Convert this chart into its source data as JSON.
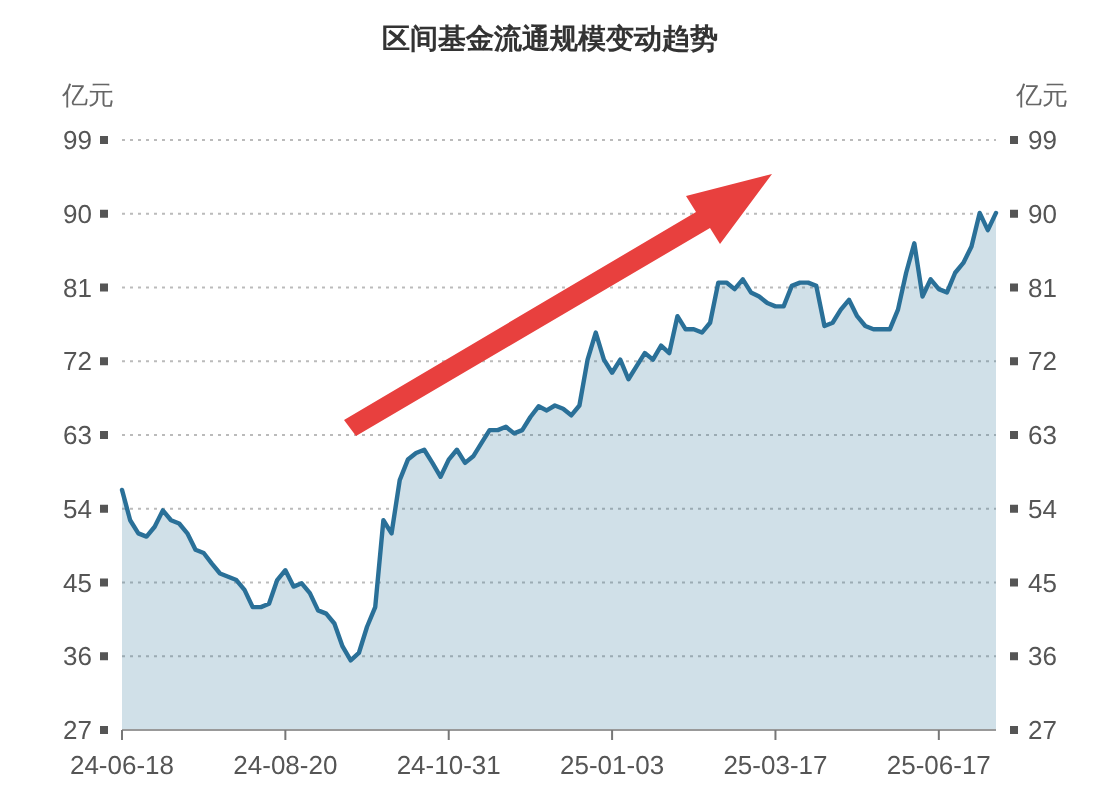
{
  "chart_data": {
    "type": "area",
    "title": "区间基金流通规模变动趋势",
    "ylabel": "亿元",
    "y2label": "亿元",
    "categories": [
      "24-06-18",
      null,
      null,
      null,
      null,
      null,
      null,
      null,
      null,
      null,
      null,
      null,
      null,
      null,
      null,
      null,
      null,
      null,
      null,
      null,
      "24-08-20",
      null,
      null,
      null,
      null,
      null,
      null,
      null,
      null,
      null,
      null,
      null,
      null,
      null,
      null,
      null,
      null,
      null,
      null,
      null,
      "24-10-31",
      null,
      null,
      null,
      null,
      null,
      null,
      null,
      null,
      null,
      null,
      null,
      null,
      null,
      null,
      null,
      null,
      null,
      null,
      null,
      "25-01-03",
      null,
      null,
      null,
      null,
      null,
      null,
      null,
      null,
      null,
      null,
      null,
      null,
      null,
      null,
      null,
      null,
      null,
      null,
      null,
      "25-03-17",
      null,
      null,
      null,
      null,
      null,
      null,
      null,
      null,
      null,
      null,
      null,
      null,
      null,
      null,
      null,
      null,
      null,
      null,
      null,
      "25-06-17",
      null,
      null,
      null,
      null,
      null,
      null,
      null
    ],
    "series": [
      {
        "color": "#2a7098",
        "values": [
          56.3,
          52.6,
          51,
          50.6,
          51.8,
          53.8,
          52.6,
          52.2,
          51,
          49,
          48.6,
          47.3,
          46.1,
          45.7,
          45.3,
          44.1,
          42,
          42,
          42.4,
          45.3,
          46.5,
          44.5,
          44.9,
          43.7,
          41.6,
          41.2,
          40,
          37.2,
          35.5,
          36.4,
          39.6,
          42,
          52.6,
          51,
          57.5,
          60,
          60.8,
          61.2,
          59.6,
          57.9,
          60,
          61.2,
          59.6,
          60.4,
          62,
          63.6,
          63.6,
          64,
          63.2,
          63.6,
          65.2,
          66.5,
          66,
          66.6,
          66.2,
          65.4,
          66.6,
          72.2,
          75.5,
          72.2,
          70.6,
          72.2,
          69.8,
          71.4,
          73,
          72.2,
          73.9,
          73,
          77.5,
          75.9,
          75.9,
          75.5,
          76.7,
          81.6,
          81.6,
          80.8,
          82,
          80.4,
          79.9,
          79.1,
          78.7,
          78.7,
          81.2,
          81.6,
          81.6,
          81.2,
          76.3,
          76.7,
          78.3,
          79.5,
          77.5,
          76.3,
          75.9,
          75.9,
          75.9,
          78.3,
          82.8,
          86.4,
          79.9,
          82,
          80.8,
          80.4,
          82.8,
          84,
          86,
          90.1,
          88,
          90.1
        ]
      }
    ],
    "ylim": [
      27,
      99
    ],
    "yticks": [
      27,
      36,
      45,
      54,
      63,
      72,
      81,
      90,
      99
    ],
    "y2lim": [
      27,
      99
    ],
    "y2ticks": [
      27,
      36,
      45,
      54,
      63,
      72,
      81,
      90,
      99
    ],
    "grid": "y"
  }
}
